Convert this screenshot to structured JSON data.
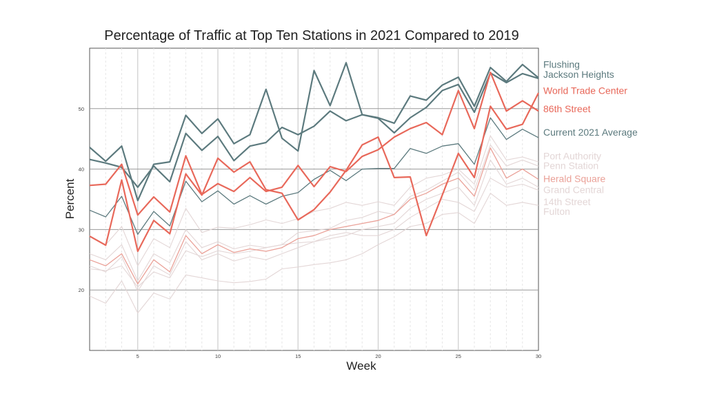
{
  "chart_data": {
    "type": "line",
    "title": "Percentage of Traffic at Top Ten Stations in 2021 Compared to 2019",
    "xlabel": "Week",
    "ylabel": "Percent",
    "xlim": [
      2,
      30
    ],
    "ylim": [
      10,
      60
    ],
    "xticks": [
      5,
      10,
      15,
      20,
      25,
      30
    ],
    "yticks": [
      20,
      30,
      40,
      50
    ],
    "grid": true,
    "legend": "right, inline labels",
    "x": [
      2,
      3,
      4,
      5,
      6,
      7,
      8,
      9,
      10,
      11,
      12,
      13,
      14,
      15,
      16,
      17,
      18,
      19,
      20,
      21,
      22,
      23,
      24,
      25,
      26,
      27,
      28,
      29,
      30
    ],
    "series": [
      {
        "name": "Flushing",
        "color": "#5c7a7e",
        "width": 2.2,
        "label_y": 57.3,
        "values": [
          43.6,
          41.3,
          43.8,
          34.8,
          40.8,
          41.2,
          48.9,
          45.9,
          48.3,
          44.2,
          45.7,
          53.2,
          45.1,
          43.0,
          56.3,
          50.5,
          57.6,
          49.0,
          48.5,
          47.6,
          52.1,
          51.4,
          53.9,
          55.2,
          50.4,
          56.8,
          54.5,
          57.3,
          55.1
        ]
      },
      {
        "name": "Jackson Heights",
        "color": "#5c7a7e",
        "width": 2.2,
        "label_y": 55.7,
        "values": [
          41.6,
          41.0,
          40.3,
          37.0,
          40.5,
          37.9,
          45.9,
          43.1,
          45.4,
          41.4,
          43.8,
          44.4,
          46.9,
          45.7,
          47.1,
          49.6,
          48.0,
          49.0,
          48.4,
          46.0,
          48.5,
          50.2,
          53.0,
          54.0,
          49.4,
          55.9,
          54.3,
          55.8,
          55.0
        ]
      },
      {
        "name": "World Trade Center",
        "color": "#e8685a",
        "width": 2.2,
        "label_y": 53.0,
        "values": [
          37.3,
          37.5,
          40.8,
          32.4,
          35.4,
          32.9,
          42.2,
          35.8,
          37.6,
          36.3,
          38.6,
          36.3,
          37.0,
          40.6,
          37.1,
          40.4,
          39.6,
          42.1,
          43.2,
          45.3,
          46.7,
          47.7,
          45.7,
          53.0,
          46.7,
          56.0,
          49.6,
          51.3,
          49.6
        ]
      },
      {
        "name": "86th Street",
        "color": "#e8685a",
        "width": 2.2,
        "label_y": 50.0,
        "values": [
          28.9,
          27.4,
          38.2,
          26.4,
          31.5,
          29.3,
          39.2,
          35.7,
          41.8,
          39.5,
          41.2,
          36.6,
          36.0,
          31.6,
          33.3,
          36.2,
          39.8,
          44.0,
          45.3,
          38.6,
          38.7,
          29.0,
          35.7,
          42.6,
          38.6,
          50.4,
          46.6,
          47.4,
          52.6
        ]
      },
      {
        "name": "Current 2021 Average",
        "color": "#5c7a7e",
        "width": 1.3,
        "label_y": 46.1,
        "values": [
          33.2,
          32.1,
          35.5,
          29.2,
          33.0,
          30.6,
          38.0,
          34.6,
          36.4,
          34.2,
          35.6,
          34.2,
          35.5,
          36.1,
          38.3,
          39.8,
          38.1,
          40.0,
          40.1,
          40.1,
          43.4,
          42.6,
          43.8,
          44.2,
          40.8,
          48.5,
          44.9,
          46.6,
          45.2
        ]
      },
      {
        "name": "Port Authority",
        "color": "#e3d6d6",
        "width": 1.1,
        "label_y": 42.2,
        "values": [
          29.0,
          27.5,
          30.5,
          24.0,
          28.5,
          27.0,
          33.5,
          29.5,
          30.4,
          30.2,
          30.8,
          31.6,
          31.0,
          31.8,
          33.0,
          33.5,
          34.5,
          34.0,
          34.6,
          34.0,
          37.0,
          38.5,
          39.0,
          40.0,
          37.5,
          45.5,
          41.5,
          42.0,
          41.2
        ]
      },
      {
        "name": "Penn Station",
        "color": "#e3d6d6",
        "width": 1.1,
        "label_y": 40.6,
        "values": [
          26.0,
          25.0,
          27.5,
          21.5,
          26.0,
          24.5,
          30.0,
          27.0,
          28.0,
          26.8,
          27.4,
          27.0,
          27.5,
          29.5,
          29.8,
          30.2,
          31.5,
          32.0,
          33.0,
          32.5,
          35.5,
          36.5,
          38.0,
          39.5,
          36.5,
          44.0,
          40.5,
          41.5,
          40.5
        ]
      },
      {
        "name": "Herald Square",
        "color": "#eaa198",
        "width": 1.3,
        "label_y": 38.4,
        "values": [
          25.0,
          24.0,
          26.0,
          21.0,
          25.0,
          23.0,
          29.0,
          26.0,
          27.5,
          26.2,
          26.8,
          26.4,
          27.0,
          28.5,
          29.0,
          30.0,
          30.5,
          31.0,
          31.5,
          32.5,
          35.0,
          36.0,
          37.5,
          38.5,
          35.5,
          43.5,
          38.5,
          40.0,
          38.3
        ]
      },
      {
        "name": "Grand Central",
        "color": "#e3d6d6",
        "width": 1.1,
        "label_y": 36.6,
        "values": [
          24.0,
          23.0,
          25.5,
          19.8,
          24.0,
          22.5,
          28.0,
          25.0,
          26.0,
          24.8,
          25.5,
          25.0,
          26.0,
          27.0,
          28.0,
          28.5,
          29.0,
          30.0,
          30.5,
          31.0,
          33.5,
          35.0,
          36.0,
          37.0,
          34.0,
          41.5,
          37.5,
          38.5,
          37.0
        ]
      },
      {
        "name": "14th Street",
        "color": "#e3d6d6",
        "width": 1.1,
        "label_y": 34.6,
        "values": [
          23.5,
          23.2,
          24.0,
          20.5,
          23.0,
          22.0,
          26.5,
          25.5,
          26.5,
          26.0,
          26.4,
          27.0,
          27.5,
          27.8,
          28.0,
          29.0,
          29.5,
          29.0,
          29.0,
          30.0,
          32.0,
          33.5,
          35.0,
          34.5,
          33.0,
          38.5,
          37.0,
          37.5,
          36.5
        ]
      },
      {
        "name": "Fulton",
        "color": "#e3d6d6",
        "width": 1.1,
        "label_y": 33.0,
        "values": [
          19.0,
          17.8,
          21.5,
          16.2,
          19.5,
          18.5,
          22.5,
          22.0,
          21.5,
          21.2,
          21.4,
          21.8,
          23.5,
          23.8,
          24.2,
          24.5,
          25.0,
          26.0,
          27.5,
          28.8,
          30.5,
          31.0,
          32.5,
          32.8,
          31.0,
          36.0,
          34.0,
          34.5,
          34.0
        ]
      }
    ]
  }
}
